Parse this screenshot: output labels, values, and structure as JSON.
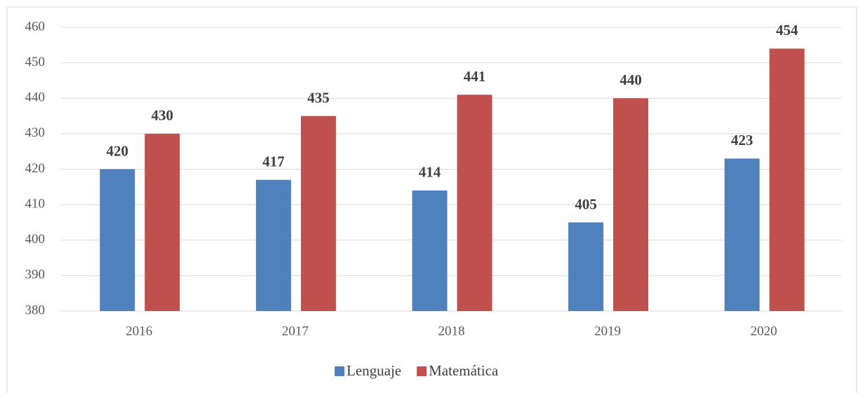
{
  "chart_data": {
    "type": "bar",
    "categories": [
      "2016",
      "2017",
      "2018",
      "2019",
      "2020"
    ],
    "series": [
      {
        "name": "Lenguaje",
        "color": "#4f81bd",
        "values": [
          420,
          417,
          414,
          405,
          423
        ]
      },
      {
        "name": "Matemática",
        "color": "#c0504d",
        "values": [
          430,
          435,
          441,
          440,
          454
        ]
      }
    ],
    "ylim": [
      380,
      460
    ],
    "yticks": [
      380,
      390,
      400,
      410,
      420,
      430,
      440,
      450,
      460
    ],
    "grid": true,
    "legend": "bottom"
  }
}
